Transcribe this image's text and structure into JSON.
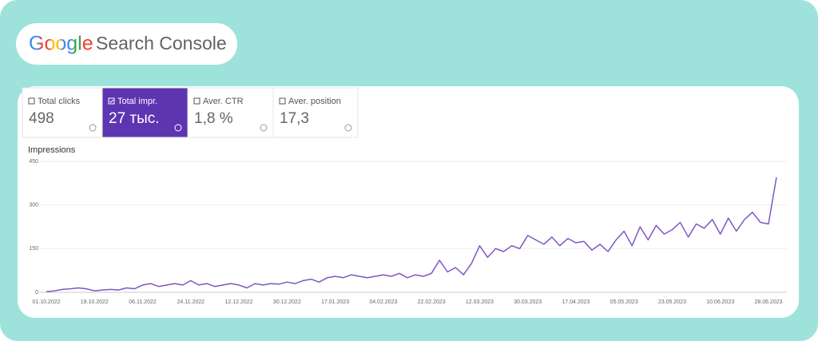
{
  "header": {
    "logo": "Google",
    "product": "Search Console"
  },
  "metrics": [
    {
      "label": "Total clicks",
      "value": "498"
    },
    {
      "label": "Total impr.",
      "value": "27 тыс."
    },
    {
      "label": "Aver. CTR",
      "value": "1,8 %"
    },
    {
      "label": "Aver. position",
      "value": "17,3"
    }
  ],
  "chart_data": {
    "type": "line",
    "title": "Impressions",
    "categories": [
      "01.10.2022",
      null,
      null,
      null,
      null,
      null,
      "19.10.2022",
      null,
      null,
      null,
      null,
      null,
      "06.11.2022",
      null,
      null,
      null,
      null,
      null,
      "24.11.2022",
      null,
      null,
      null,
      null,
      null,
      "12.12.2022",
      null,
      null,
      null,
      null,
      null,
      "30.12.2022",
      null,
      null,
      null,
      null,
      null,
      "17.01.2023",
      null,
      null,
      null,
      null,
      null,
      "04.02.2023",
      null,
      null,
      null,
      null,
      null,
      "22.02.2023",
      null,
      null,
      null,
      null,
      null,
      "12.03.2023",
      null,
      null,
      null,
      null,
      null,
      "30.03.2023",
      null,
      null,
      null,
      null,
      null,
      "17.04.2023",
      null,
      null,
      null,
      null,
      null,
      "05.05.2023",
      null,
      null,
      null,
      null,
      null,
      "23.05.2023",
      null,
      null,
      null,
      null,
      null,
      "10.06.2023",
      null,
      null,
      null,
      null,
      null,
      "28.06.2023",
      null
    ],
    "series": [
      {
        "name": "Impressions",
        "color": "#7e57c2",
        "values": [
          2,
          5,
          10,
          12,
          15,
          12,
          5,
          8,
          10,
          8,
          15,
          12,
          25,
          30,
          20,
          25,
          30,
          25,
          40,
          25,
          30,
          20,
          25,
          30,
          25,
          15,
          30,
          25,
          30,
          28,
          35,
          30,
          40,
          45,
          35,
          50,
          55,
          50,
          60,
          55,
          50,
          55,
          60,
          55,
          65,
          50,
          60,
          55,
          65,
          110,
          70,
          85,
          60,
          100,
          160,
          120,
          150,
          140,
          160,
          150,
          195,
          180,
          165,
          190,
          160,
          185,
          170,
          175,
          145,
          165,
          140,
          180,
          210,
          160,
          225,
          180,
          230,
          200,
          215,
          240,
          190,
          235,
          220,
          250,
          200,
          255,
          210,
          250,
          275,
          240,
          235,
          395
        ]
      }
    ],
    "ylim": [
      0,
      450
    ],
    "yticks": [
      0,
      150,
      300,
      450
    ],
    "grid": true
  }
}
